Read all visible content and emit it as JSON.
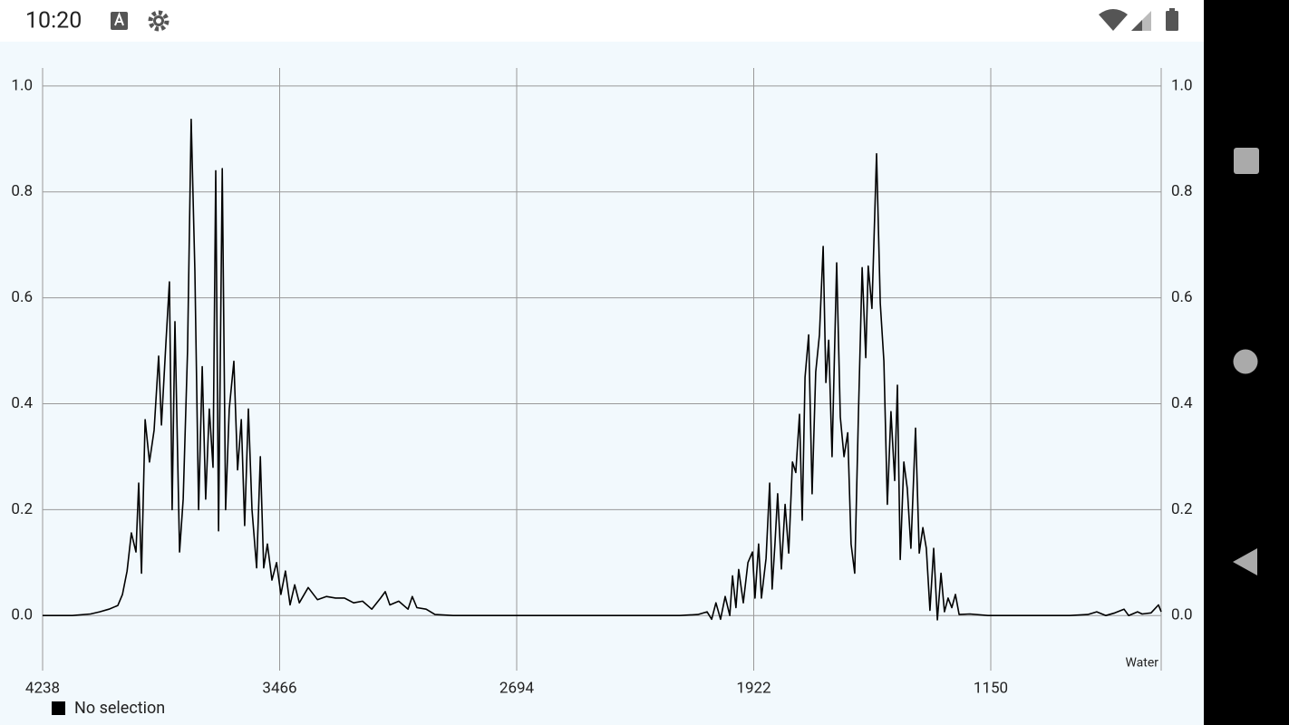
{
  "status_bar": {
    "time": "10:20"
  },
  "chart_data": {
    "type": "line",
    "annotation": "Water",
    "x": [
      4238,
      4141,
      4082,
      4052,
      4022,
      3993,
      3978,
      3963,
      3949,
      3934,
      3925,
      3916,
      3904,
      3890,
      3875,
      3860,
      3851,
      3836,
      3825,
      3816,
      3807,
      3792,
      3780,
      3766,
      3754,
      3742,
      3730,
      3718,
      3707,
      3695,
      3683,
      3674,
      3665,
      3653,
      3642,
      3630,
      3615,
      3603,
      3591,
      3580,
      3568,
      3556,
      3541,
      3529,
      3518,
      3506,
      3491,
      3476,
      3462,
      3447,
      3432,
      3417,
      3402,
      3373,
      3343,
      3314,
      3284,
      3255,
      3225,
      3196,
      3166,
      3137,
      3122,
      3107,
      3078,
      3048,
      3034,
      3019,
      2989,
      2960,
      2901,
      2753,
      2605,
      2458,
      2310,
      2163,
      2104,
      2074,
      2059,
      2045,
      2030,
      2015,
      2000,
      1991,
      1980,
      1971,
      1956,
      1941,
      1926,
      1918,
      1906,
      1897,
      1882,
      1870,
      1862,
      1853,
      1844,
      1832,
      1820,
      1808,
      1796,
      1785,
      1773,
      1764,
      1755,
      1743,
      1732,
      1720,
      1708,
      1696,
      1687,
      1678,
      1667,
      1652,
      1640,
      1628,
      1616,
      1605,
      1593,
      1581,
      1569,
      1557,
      1549,
      1537,
      1522,
      1510,
      1498,
      1487,
      1475,
      1463,
      1454,
      1445,
      1433,
      1422,
      1410,
      1395,
      1383,
      1371,
      1360,
      1348,
      1336,
      1324,
      1312,
      1301,
      1289,
      1277,
      1265,
      1253,
      1218,
      1159,
      1041,
      893,
      834,
      805,
      775,
      746,
      716,
      701,
      672,
      657,
      628,
      604,
      595
    ],
    "series": [
      {
        "name": "No selection",
        "color": "#000000",
        "values": [
          0,
          0,
          0.003,
          0.007,
          0.012,
          0.019,
          0.04,
          0.084,
          0.156,
          0.12,
          0.25,
          0.08,
          0.37,
          0.29,
          0.35,
          0.49,
          0.36,
          0.52,
          0.63,
          0.2,
          0.555,
          0.12,
          0.22,
          0.5,
          0.937,
          0.65,
          0.2,
          0.47,
          0.22,
          0.39,
          0.28,
          0.84,
          0.16,
          0.844,
          0.2,
          0.39,
          0.48,
          0.275,
          0.37,
          0.17,
          0.39,
          0.2,
          0.09,
          0.3,
          0.09,
          0.135,
          0.067,
          0.1,
          0.04,
          0.084,
          0.02,
          0.058,
          0.024,
          0.053,
          0.03,
          0.036,
          0.033,
          0.033,
          0.024,
          0.027,
          0.012,
          0.033,
          0.045,
          0.02,
          0.027,
          0.012,
          0.036,
          0.015,
          0.012,
          0.002,
          0,
          0,
          0,
          0,
          0,
          0,
          0.002,
          0.007,
          -0.007,
          0.024,
          -0.007,
          0.036,
          0,
          0.075,
          0.015,
          0.087,
          0.024,
          0.1,
          0.12,
          0.033,
          0.135,
          0.033,
          0.108,
          0.25,
          0.05,
          0.135,
          0.23,
          0.088,
          0.21,
          0.118,
          0.29,
          0.27,
          0.38,
          0.18,
          0.45,
          0.53,
          0.23,
          0.46,
          0.53,
          0.697,
          0.44,
          0.52,
          0.3,
          0.666,
          0.375,
          0.3,
          0.345,
          0.135,
          0.08,
          0.38,
          0.657,
          0.487,
          0.66,
          0.58,
          0.872,
          0.59,
          0.48,
          0.21,
          0.385,
          0.255,
          0.435,
          0.106,
          0.29,
          0.24,
          0.127,
          0.354,
          0.118,
          0.166,
          0.127,
          0.01,
          0.127,
          -0.008,
          0.08,
          0.007,
          0.033,
          0.015,
          0.04,
          0.002,
          0.003,
          0,
          0,
          0,
          0.002,
          0.007,
          0,
          0.005,
          0.012,
          0,
          0.007,
          0.003,
          0.005,
          0.02,
          0.007
        ]
      }
    ],
    "xlim": [
      4238,
      595
    ],
    "ylim": [
      -0.104,
      1.034
    ],
    "xticks": [
      4238,
      3466,
      2694,
      1922,
      1150
    ],
    "yticks": [
      {
        "value": 0,
        "label": "0.0"
      },
      {
        "value": 0.2,
        "label": "0.2"
      },
      {
        "value": 0.4,
        "label": "0.4"
      },
      {
        "value": 0.6,
        "label": "0.6"
      },
      {
        "value": 0.8,
        "label": "0.8"
      },
      {
        "value": 1,
        "label": "1.0"
      }
    ],
    "grid": true
  }
}
